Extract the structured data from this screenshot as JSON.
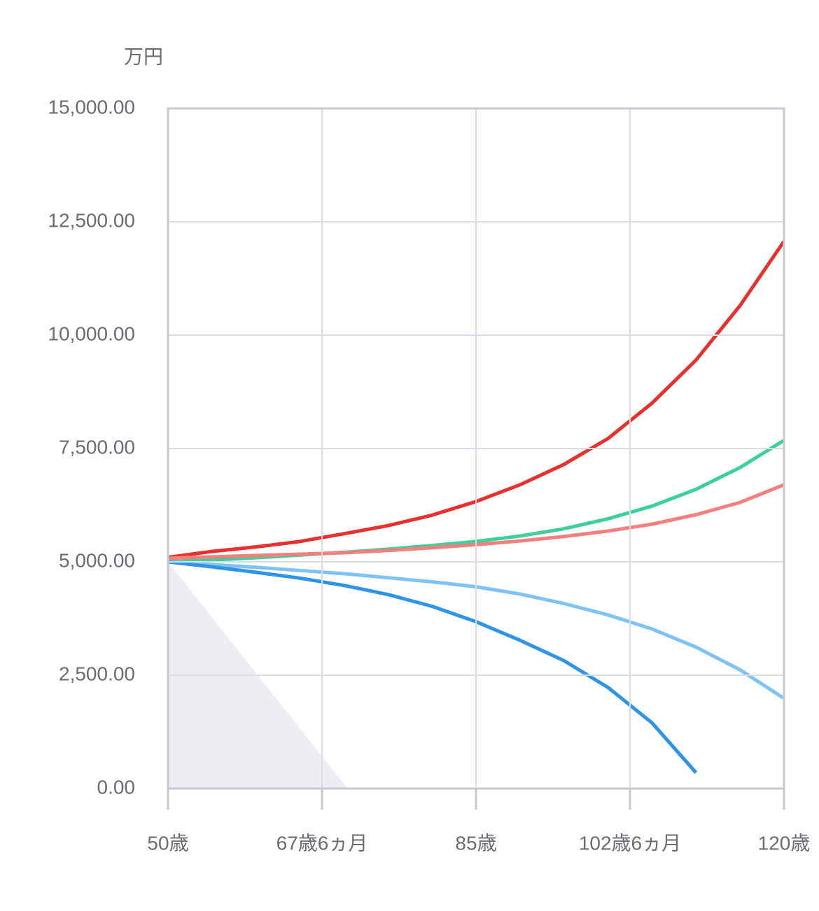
{
  "chart_data": {
    "type": "line",
    "y_unit": "万円",
    "x": [
      50,
      55,
      60,
      65,
      70,
      75,
      80,
      85,
      90,
      95,
      100,
      105,
      110,
      115,
      120
    ],
    "series": [
      {
        "color": "#e8312f",
        "values": [
          5100,
          5230,
          5330,
          5450,
          5620,
          5800,
          6030,
          6330,
          6700,
          7150,
          7720,
          8500,
          9450,
          10650,
          12070
        ]
      },
      {
        "color": "#3ecf9a",
        "values": [
          5000,
          5040,
          5090,
          5150,
          5210,
          5280,
          5360,
          5450,
          5570,
          5730,
          5950,
          6230,
          6600,
          7080,
          7680
        ]
      },
      {
        "color": "#f37f7f",
        "values": [
          5080,
          5110,
          5140,
          5170,
          5200,
          5250,
          5310,
          5380,
          5460,
          5560,
          5680,
          5830,
          6040,
          6310,
          6700
        ]
      },
      {
        "color": "#7fc3f5",
        "values": [
          5000,
          4940,
          4880,
          4810,
          4740,
          4650,
          4560,
          4450,
          4290,
          4080,
          3830,
          3520,
          3120,
          2620,
          1990
        ]
      },
      {
        "color": "#2e94e6",
        "values": [
          5000,
          4890,
          4770,
          4640,
          4480,
          4280,
          4020,
          3680,
          3270,
          2820,
          2230,
          1450,
          350,
          null,
          null
        ]
      }
    ],
    "area": {
      "color": "#ededf4",
      "x": [
        50,
        70.4
      ],
      "values": [
        5000,
        0
      ]
    },
    "xlim": [
      50,
      120
    ],
    "xticks": [
      {
        "value": 50,
        "label": "50歳"
      },
      {
        "value": 67.5,
        "label": "67歳6ヵ月"
      },
      {
        "value": 85,
        "label": "85歳"
      },
      {
        "value": 102.5,
        "label": "102歳6ヵ月"
      },
      {
        "value": 120,
        "label": "120歳"
      }
    ],
    "ylim": [
      0,
      15000
    ],
    "yticks": [
      {
        "value": 0,
        "label": "0.00"
      },
      {
        "value": 2500,
        "label": "2,500.00"
      },
      {
        "value": 5000,
        "label": "5,000.00"
      },
      {
        "value": 7500,
        "label": "7,500.00"
      },
      {
        "value": 10000,
        "label": "10,000.00"
      },
      {
        "value": 12500,
        "label": "12,500.00"
      },
      {
        "value": 15000,
        "label": "15,000.00"
      }
    ],
    "grid": true
  }
}
